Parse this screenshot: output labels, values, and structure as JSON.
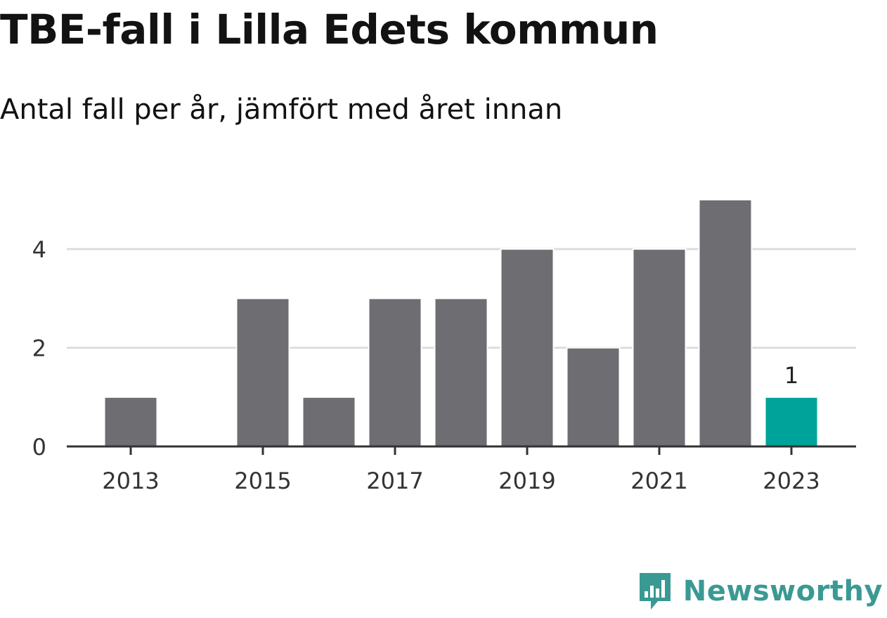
{
  "title": "TBE-fall i Lilla Edets kommun",
  "subtitle": "Antal fall per år, jämfört med året innan",
  "brand": "Newsworthy",
  "colors": {
    "bar": "#6e6d72",
    "highlight": "#00a39a",
    "grid": "#dddddd",
    "axis": "#333333",
    "brand": "#3a9a93"
  },
  "chart_data": {
    "type": "bar",
    "categories": [
      "2013",
      "2014",
      "2015",
      "2016",
      "2017",
      "2018",
      "2019",
      "2020",
      "2021",
      "2022",
      "2023"
    ],
    "values": [
      1,
      0,
      3,
      1,
      3,
      3,
      4,
      2,
      4,
      5,
      1
    ],
    "highlight_index": 10,
    "x_tick_labels": [
      "2013",
      "2015",
      "2017",
      "2019",
      "2021",
      "2023"
    ],
    "y_ticks": [
      0,
      2,
      4
    ],
    "ylim": [
      0,
      5
    ],
    "grid": true,
    "data_labels": [
      {
        "category": "2023",
        "text": "1"
      }
    ],
    "xlabel": "",
    "ylabel": ""
  }
}
